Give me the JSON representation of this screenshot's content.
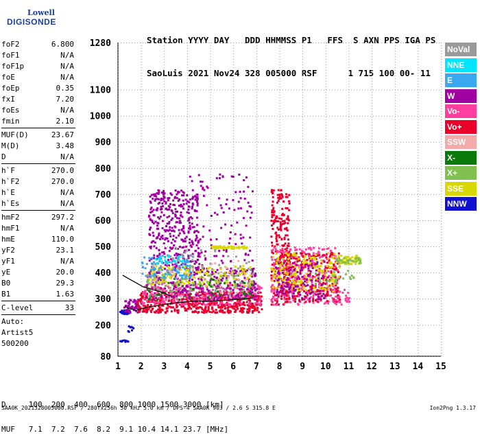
{
  "logo": {
    "line1": "Lowell",
    "line2": "DIGISONDE",
    "color": "#1d3f9b"
  },
  "header": {
    "line1": "Station YYYY DAY   DDD HHMMSS P1   FFS  S AXN PPS IGA PS",
    "line2": "SaoLuis 2021 Nov24 328 005000 RSF      1 715 100 00- 11"
  },
  "params": [
    {
      "label": "foF2",
      "value": "6.800"
    },
    {
      "label": "foF1",
      "value": "N/A"
    },
    {
      "label": "foF1p",
      "value": "N/A"
    },
    {
      "label": "foE",
      "value": "N/A"
    },
    {
      "label": "foEp",
      "value": "0.35"
    },
    {
      "label": "fxI",
      "value": "7.20"
    },
    {
      "label": "foEs",
      "value": "N/A"
    },
    {
      "label": "fmin",
      "value": "2.10"
    },
    {
      "label": "MUF(D)",
      "value": "23.67"
    },
    {
      "label": "M(D)",
      "value": "3.48"
    },
    {
      "label": "D",
      "value": "N/A"
    },
    {
      "label": "h`F",
      "value": "270.0"
    },
    {
      "label": "h`F2",
      "value": "270.0"
    },
    {
      "label": "h`E",
      "value": "N/A"
    },
    {
      "label": "h`Es",
      "value": "N/A"
    },
    {
      "label": "hmF2",
      "value": "297.2"
    },
    {
      "label": "hmF1",
      "value": "N/A"
    },
    {
      "label": "hmE",
      "value": "110.0"
    },
    {
      "label": "yF2",
      "value": "23.1"
    },
    {
      "label": "yF1",
      "value": "N/A"
    },
    {
      "label": "yE",
      "value": "20.0"
    },
    {
      "label": "B0",
      "value": "29.3"
    },
    {
      "label": "B1",
      "value": "1.63"
    },
    {
      "label": "C-level",
      "value": "33"
    }
  ],
  "auto": {
    "line1": "Auto:",
    "line2": "Artist5",
    "line3": "500200"
  },
  "legend": [
    {
      "label": "NoVal",
      "color": "#9a9a9a"
    },
    {
      "label": "NNE",
      "color": "#00e5ff"
    },
    {
      "label": "E",
      "color": "#3aa8f0"
    },
    {
      "label": "W",
      "color": "#a000a0"
    },
    {
      "label": "Vo-",
      "color": "#ff3fa0"
    },
    {
      "label": "Vo+",
      "color": "#e8002a"
    },
    {
      "label": "SSW",
      "color": "#f4aaaa"
    },
    {
      "label": "X-",
      "color": "#0a7a0a"
    },
    {
      "label": "X+",
      "color": "#80c050"
    },
    {
      "label": "SSE",
      "color": "#d8d800"
    },
    {
      "label": "NNW",
      "color": "#1010d0"
    }
  ],
  "footer": {
    "line1": "D     100  200  400  600  800 1000 1500 3000 [km]",
    "line2": "MUF   7.1  7.2  7.6  8.2  9.1 10.4 14.1 23.7 [MHz]"
  },
  "status": "SAA0K_2021328005000.RSF / 280fx256h 50 kHz 5.0 km / DPS-4 SAA0K 903 / 2.6 S 315.8 E",
  "version": "Ion2Png 1.3.17",
  "chart_data": {
    "type": "scatter",
    "title": "",
    "xlabel": "",
    "ylabel": "",
    "xlim": [
      1,
      15
    ],
    "ylim": [
      80,
      1280
    ],
    "x_ticks": [
      1,
      2,
      3,
      4,
      5,
      6,
      7,
      8,
      9,
      10,
      11,
      12,
      13,
      14,
      15
    ],
    "y_ticks": [
      80,
      200,
      300,
      400,
      500,
      600,
      700,
      800,
      900,
      1000,
      1100,
      1280
    ],
    "grid": true,
    "series": [
      {
        "name": "trace",
        "color": "#000000",
        "x": [
          1.3,
          1.5,
          1.8,
          2.0,
          2.3,
          2.6,
          3.0,
          3.4,
          3.8,
          4.2,
          4.6,
          5.0,
          5.4,
          5.8,
          6.2,
          6.6,
          6.8
        ],
        "values": [
          270,
          262,
          255,
          262,
          268,
          272,
          278,
          283,
          287,
          290,
          291,
          290,
          292,
          295,
          298,
          300,
          302
        ]
      },
      {
        "name": "x-trace",
        "color": "#000000",
        "x": [
          1.2,
          1.5,
          1.8,
          2.1,
          2.5,
          2.9,
          3.3
        ],
        "values": [
          390,
          375,
          360,
          345,
          335,
          325,
          310
        ]
      }
    ],
    "clusters": [
      {
        "x": [
          1.05,
          1.5
        ],
        "y": [
          245,
          260
        ],
        "color": "#1010d0",
        "n": 40
      },
      {
        "x": [
          1.05,
          1.4
        ],
        "y": [
          135,
          145
        ],
        "color": "#1010d0",
        "n": 10
      },
      {
        "x": [
          1.4,
          1.8
        ],
        "y": [
          170,
          200
        ],
        "color": "#1010d0",
        "n": 8
      },
      {
        "x": [
          1.2,
          2.0
        ],
        "y": [
          250,
          300
        ],
        "color": "#a000a0",
        "n": 50
      },
      {
        "x": [
          1.8,
          7.2
        ],
        "y": [
          250,
          330
        ],
        "color": "#e8002a",
        "n": 600
      },
      {
        "x": [
          2.0,
          7.2
        ],
        "y": [
          280,
          360
        ],
        "color": "#ff3fa0",
        "n": 300
      },
      {
        "x": [
          2.2,
          7.0
        ],
        "y": [
          300,
          420
        ],
        "color": "#a000a0",
        "n": 300
      },
      {
        "x": [
          2.3,
          4.5
        ],
        "y": [
          420,
          720
        ],
        "color": "#a000a0",
        "n": 350
      },
      {
        "x": [
          3.8,
          6.8
        ],
        "y": [
          430,
          780
        ],
        "color": "#a000a0",
        "n": 120
      },
      {
        "x": [
          2.2,
          6.8
        ],
        "y": [
          350,
          430
        ],
        "color": "#d8d800",
        "n": 160
      },
      {
        "x": [
          2.2,
          6.8
        ],
        "y": [
          300,
          380
        ],
        "color": "#0a7a0a",
        "n": 60
      },
      {
        "x": [
          2.2,
          6.8
        ],
        "y": [
          330,
          400
        ],
        "color": "#80c050",
        "n": 60
      },
      {
        "x": [
          2.0,
          4.2
        ],
        "y": [
          380,
          470
        ],
        "color": "#3aa8f0",
        "n": 90
      },
      {
        "x": [
          2.6,
          4.0
        ],
        "y": [
          440,
          470
        ],
        "color": "#00e5ff",
        "n": 25
      },
      {
        "x": [
          5.0,
          6.6
        ],
        "y": [
          495,
          505
        ],
        "color": "#d8d800",
        "n": 50
      },
      {
        "x": [
          2.2,
          6.8
        ],
        "y": [
          300,
          500
        ],
        "color": "#9a9a9a",
        "n": 60
      },
      {
        "x": [
          2.2,
          6.8
        ],
        "y": [
          300,
          450
        ],
        "color": "#f4aaaa",
        "n": 40
      },
      {
        "x": [
          7.6,
          8.4
        ],
        "y": [
          280,
          720
        ],
        "color": "#e8002a",
        "n": 220
      },
      {
        "x": [
          7.6,
          10.6
        ],
        "y": [
          280,
          500
        ],
        "color": "#ff3fa0",
        "n": 350
      },
      {
        "x": [
          8.0,
          10.6
        ],
        "y": [
          290,
          480
        ],
        "color": "#e8002a",
        "n": 250
      },
      {
        "x": [
          7.6,
          10.6
        ],
        "y": [
          330,
          480
        ],
        "color": "#d8d800",
        "n": 180
      },
      {
        "x": [
          7.8,
          10.0
        ],
        "y": [
          300,
          450
        ],
        "color": "#a000a0",
        "n": 120
      },
      {
        "x": [
          10.4,
          11.5
        ],
        "y": [
          435,
          470
        ],
        "color": "#d8d800",
        "n": 60
      },
      {
        "x": [
          10.4,
          11.5
        ],
        "y": [
          440,
          460
        ],
        "color": "#80c050",
        "n": 30
      },
      {
        "x": [
          10.2,
          11.0
        ],
        "y": [
          280,
          340
        ],
        "color": "#ff3fa0",
        "n": 25
      },
      {
        "x": [
          9.5,
          11.2
        ],
        "y": [
          360,
          420
        ],
        "color": "#80c050",
        "n": 25
      }
    ]
  }
}
